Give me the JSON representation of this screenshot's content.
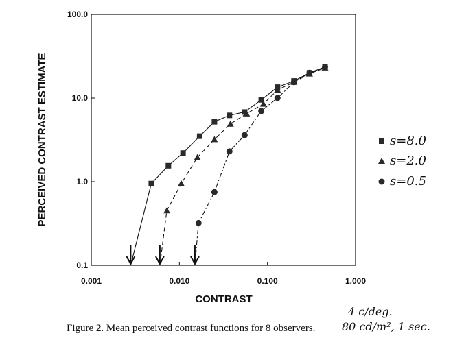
{
  "chart_data": {
    "type": "line",
    "xscale": "log",
    "yscale": "log",
    "xlim": [
      0.001,
      1.0
    ],
    "ylim": [
      0.1,
      100.0
    ],
    "xlabel": "CONTRAST",
    "ylabel": "PERCEIVED CONTRAST ESTIMATE",
    "x_ticks": [
      "0.001",
      "0.010",
      "0.100",
      "1.000"
    ],
    "y_ticks": [
      "0.1",
      "1.0",
      "10.0",
      "100.0"
    ],
    "grid": false,
    "series": [
      {
        "name": "s=8.0",
        "marker": "square",
        "line": "solid",
        "points": [
          [
            0.0048,
            0.95
          ],
          [
            0.0075,
            1.55
          ],
          [
            0.011,
            2.2
          ],
          [
            0.017,
            3.5
          ],
          [
            0.025,
            5.2
          ],
          [
            0.037,
            6.2
          ],
          [
            0.055,
            6.8
          ],
          [
            0.085,
            9.5
          ],
          [
            0.13,
            13.5
          ],
          [
            0.2,
            16.0
          ],
          [
            0.3,
            20.0
          ],
          [
            0.45,
            23.5
          ]
        ],
        "threshold": 0.0028
      },
      {
        "name": "s=2.0",
        "marker": "triangle",
        "line": "dashed",
        "points": [
          [
            0.0072,
            0.45
          ],
          [
            0.0105,
            0.95
          ],
          [
            0.016,
            1.95
          ],
          [
            0.025,
            3.2
          ],
          [
            0.038,
            4.9
          ],
          [
            0.058,
            6.5
          ],
          [
            0.09,
            8.5
          ],
          [
            0.13,
            12.5
          ],
          [
            0.2,
            15.5
          ],
          [
            0.3,
            19.5
          ],
          [
            0.45,
            23.0
          ]
        ],
        "threshold": 0.006
      },
      {
        "name": "s=0.5",
        "marker": "circle",
        "line": "dash-dot",
        "points": [
          [
            0.0165,
            0.32
          ],
          [
            0.025,
            0.75
          ],
          [
            0.037,
            2.3
          ],
          [
            0.055,
            3.6
          ],
          [
            0.085,
            7.0
          ],
          [
            0.13,
            10.0
          ],
          [
            0.2,
            15.5
          ],
          [
            0.3,
            20.0
          ],
          [
            0.45,
            23.5
          ]
        ],
        "threshold": 0.015
      }
    ],
    "legend": {
      "placement": "right",
      "entries": [
        "s=8.0",
        "s=2.0",
        "s=0.5"
      ]
    }
  },
  "caption": {
    "label": "Figure",
    "number": "2",
    "text": "Mean perceived contrast functions for 8 observers."
  },
  "annotation": {
    "line1": "4 c/deg.",
    "line2": "80 cd/m², 1 sec."
  }
}
